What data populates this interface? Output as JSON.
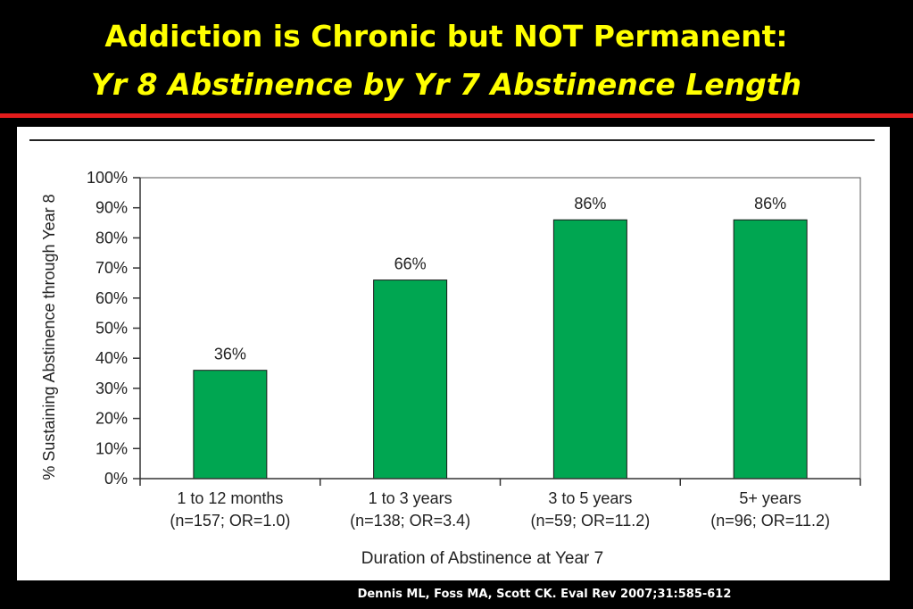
{
  "slide": {
    "title_line1": "Addiction is Chronic but NOT Permanent:",
    "title_line2": "Yr 8 Abstinence by Yr 7 Abstinence Length",
    "citation": "Dennis ML, Foss MA, Scott CK.  Eval Rev 2007;31:585-612",
    "colors": {
      "background": "#000000",
      "title": "#ffff00",
      "rule": "#e31c1c",
      "citation": "#ffffff"
    }
  },
  "chart_data": {
    "type": "bar",
    "categories": [
      "1 to 12 months",
      "1 to 3 years",
      "3 to 5 years",
      "5+ years"
    ],
    "category_sublabels": [
      "(n=157; OR=1.0)",
      "(n=138; OR=3.4)",
      "(n=59; OR=11.2)",
      "(n=96; OR=11.2)"
    ],
    "values": [
      36,
      66,
      86,
      86
    ],
    "data_labels": [
      "36%",
      "66%",
      "86%",
      "86%"
    ],
    "xlabel": "Duration of Abstinence at Year 7",
    "ylabel": "% Sustaining Abstinence through Year 8",
    "ylim": [
      0,
      100
    ],
    "yticks": [
      0,
      10,
      20,
      30,
      40,
      50,
      60,
      70,
      80,
      90,
      100
    ],
    "ytick_labels": [
      "0%",
      "10%",
      "20%",
      "30%",
      "40%",
      "50%",
      "60%",
      "70%",
      "80%",
      "90%",
      "100%"
    ],
    "grid": false,
    "bar_color": "#00a651"
  }
}
